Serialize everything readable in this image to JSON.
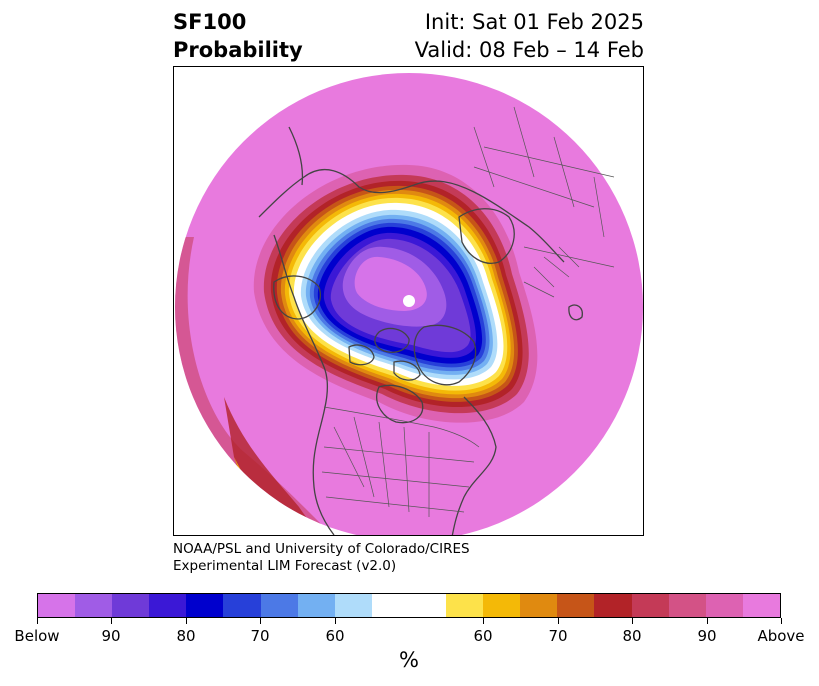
{
  "header": {
    "variable": "SF100",
    "quantity": "Probability",
    "init": "Init: Sat 01 Feb 2025",
    "valid": "Valid: 08 Feb – 14 Feb"
  },
  "credit": {
    "line1": "NOAA/PSL and University of Colorado/CIRES",
    "line2": "Experimental LIM Forecast (v2.0)"
  },
  "colorbar": {
    "colors": [
      "#d673e9",
      "#a05ce6",
      "#6f3ad8",
      "#3b18d6",
      "#0000cd",
      "#2740d9",
      "#4c79e6",
      "#73b0f2",
      "#afdcfa",
      "#ffffff",
      "#ffffff",
      "#fde24a",
      "#f4b907",
      "#e08a10",
      "#c65518",
      "#b22328",
      "#c43a57",
      "#d35286",
      "#dd62b2",
      "#e87ade"
    ],
    "labels": [
      "Below",
      "90",
      "80",
      "70",
      "60",
      "60",
      "70",
      "80",
      "90",
      "Above"
    ],
    "unit": "%"
  }
}
